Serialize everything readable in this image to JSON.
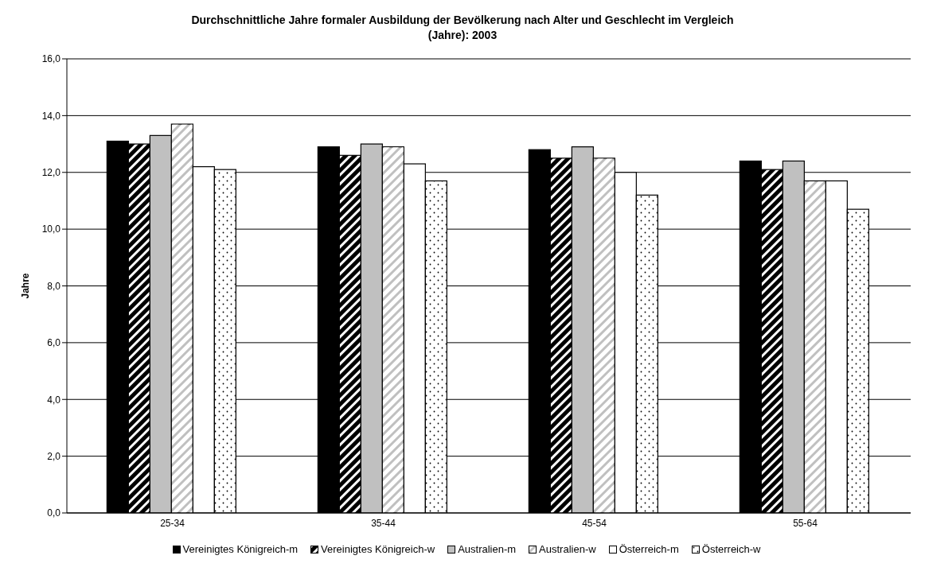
{
  "chart_data": {
    "type": "bar",
    "title": "Durchschnittliche Jahre formaler Ausbildung der Bevölkerung nach Alter und Geschlecht im Vergleich (Jahre): 2003",
    "ylabel": "Jahre",
    "categories": [
      "25-34",
      "35-44",
      "45-54",
      "55-64"
    ],
    "series": [
      {
        "name": "Vereinigtes Königreich-m",
        "color": "#000000",
        "values": [
          13.1,
          12.9,
          12.8,
          12.4
        ]
      },
      {
        "name": "Vereinigtes Königreich-w",
        "color": "#000000",
        "values": [
          13.0,
          12.6,
          12.5,
          12.1
        ]
      },
      {
        "name": "Australien-m",
        "color": "#c0c0c0",
        "values": [
          13.3,
          13.0,
          12.9,
          12.4
        ]
      },
      {
        "name": "Australien-w",
        "color": "#c0c0c0",
        "values": [
          13.7,
          12.9,
          12.5,
          11.7
        ]
      },
      {
        "name": "Österreich-m",
        "color": "#ffffff",
        "values": [
          12.2,
          12.3,
          12.0,
          11.7
        ]
      },
      {
        "name": "Österreich-w",
        "color": "#ffffff",
        "values": [
          12.1,
          11.7,
          11.2,
          10.7
        ]
      }
    ],
    "ylim": [
      0,
      16
    ],
    "yticks": [
      {
        "value": 0,
        "label": "0,0"
      },
      {
        "value": 2,
        "label": "2,0"
      },
      {
        "value": 4,
        "label": "4,0"
      },
      {
        "value": 6,
        "label": "6,0"
      },
      {
        "value": 8,
        "label": "8,0"
      },
      {
        "value": 10,
        "label": "10,0"
      },
      {
        "value": 12,
        "label": "12,0"
      },
      {
        "value": 14,
        "label": "14,0"
      },
      {
        "value": 16,
        "label": "16,0"
      }
    ],
    "grid": "y",
    "legend": "bottom"
  }
}
